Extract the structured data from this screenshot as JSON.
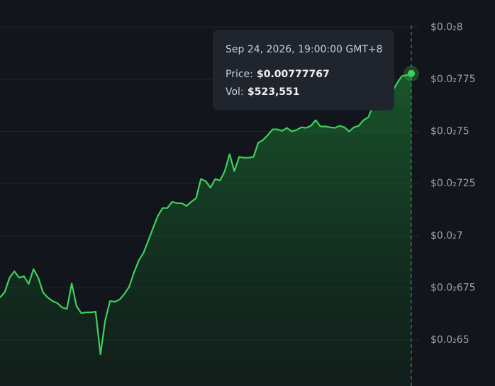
{
  "chart_data": {
    "type": "line",
    "series": [
      {
        "name": "Price",
        "color": "#3fd05c",
        "values": [
          0.006704,
          0.006731,
          0.006799,
          0.00683,
          0.006799,
          0.006806,
          0.006769,
          0.00684,
          0.006799,
          0.006728,
          0.006704,
          0.006687,
          0.006677,
          0.006656,
          0.00665,
          0.006772,
          0.006663,
          0.006629,
          0.006633,
          0.006633,
          0.006636,
          0.006432,
          0.006595,
          0.006687,
          0.006684,
          0.006694,
          0.006721,
          0.006755,
          0.006823,
          0.006881,
          0.006918,
          0.006976,
          0.007037,
          0.007095,
          0.007133,
          0.007133,
          0.007163,
          0.007156,
          0.007156,
          0.007143,
          0.007163,
          0.00718,
          0.007272,
          0.007262,
          0.007231,
          0.007272,
          0.007265,
          0.00731,
          0.007391,
          0.00731,
          0.007378,
          0.007374,
          0.007374,
          0.007378,
          0.007446,
          0.007459,
          0.007483,
          0.00751,
          0.00751,
          0.007503,
          0.007517,
          0.0075,
          0.007507,
          0.00752,
          0.007517,
          0.007527,
          0.007554,
          0.007524,
          0.007524,
          0.00752,
          0.007517,
          0.007527,
          0.00752,
          0.0075,
          0.00752,
          0.007527,
          0.007554,
          0.007568,
          0.007622,
          0.007656,
          0.007673,
          0.007663,
          0.00769,
          0.007731,
          0.007765,
          0.00777,
          0.00777767
        ]
      }
    ],
    "ylim": [
      0.00628,
      0.00813
    ],
    "yticks": [
      {
        "value": 0.008,
        "label": "$0.0₂8"
      },
      {
        "value": 0.00775,
        "label": "$0.0₂775"
      },
      {
        "value": 0.0075,
        "label": "$0.0₂75"
      },
      {
        "value": 0.00725,
        "label": "$0.0₂725"
      },
      {
        "value": 0.007,
        "label": "$0.0₂7"
      },
      {
        "value": 0.00675,
        "label": "$0.0₂675"
      },
      {
        "value": 0.0065,
        "label": "$0.0₂65"
      }
    ],
    "grid": true,
    "tooltip": {
      "date": "Sep 24, 2026, 19:00:00 GMT+8",
      "price_label": "Price:",
      "price": "$0.00777767",
      "vol_label": "Vol:",
      "vol": "$523,551"
    }
  }
}
